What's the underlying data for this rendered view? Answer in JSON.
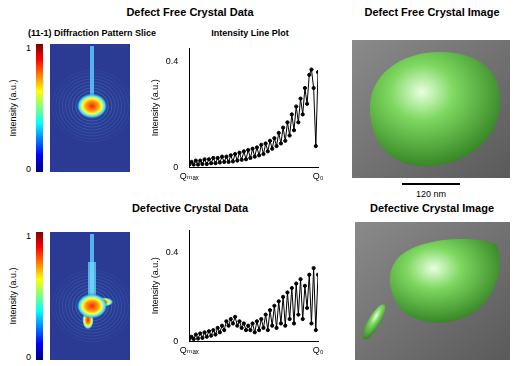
{
  "figure": {
    "rows": [
      {
        "data_title": "Defect Free Crystal Data",
        "image_title": "Defect Free Crystal Image",
        "pattern_title": "(11-1) Diffraction Pattern Slice",
        "plot_title": "Intensity Line Plot",
        "scale_bar": "120 nm"
      },
      {
        "data_title": "Defective Crystal Data",
        "image_title": "Defective Crystal Image"
      }
    ],
    "colorbar": {
      "label": "Intensity (a.u.)",
      "range": [
        0,
        1
      ],
      "ticks": [
        0,
        1
      ]
    }
  },
  "chart_data": [
    {
      "type": "line",
      "y_label": "Intensity (a.u.)",
      "color": "#000000",
      "marker": "circle",
      "line_style": "solid",
      "grid": false,
      "ylim": [
        0,
        0.45
      ],
      "yticks": [
        0,
        0.4
      ],
      "categories": [
        "Qₘₐₓ",
        null,
        null,
        null,
        null,
        null,
        null,
        null,
        null,
        null,
        null,
        null,
        null,
        null,
        null,
        null,
        null,
        null,
        null,
        null,
        null,
        null,
        null,
        null,
        null,
        null,
        null,
        null,
        null,
        null,
        null,
        null,
        null,
        null,
        null,
        null,
        null,
        null,
        null,
        null,
        null,
        null,
        null,
        null,
        null,
        null,
        null,
        null,
        null,
        null,
        null,
        null,
        null,
        null,
        null,
        null,
        null,
        null,
        null,
        "Q₀"
      ],
      "values": [
        0.01,
        0.02,
        0.01,
        0.025,
        0.01,
        0.025,
        0.012,
        0.03,
        0.012,
        0.03,
        0.015,
        0.035,
        0.015,
        0.035,
        0.018,
        0.04,
        0.02,
        0.04,
        0.02,
        0.045,
        0.022,
        0.05,
        0.025,
        0.055,
        0.028,
        0.06,
        0.03,
        0.065,
        0.035,
        0.07,
        0.04,
        0.075,
        0.045,
        0.085,
        0.05,
        0.09,
        0.06,
        0.1,
        0.07,
        0.11,
        0.08,
        0.13,
        0.09,
        0.15,
        0.1,
        0.17,
        0.12,
        0.2,
        0.14,
        0.23,
        0.17,
        0.26,
        0.2,
        0.3,
        0.24,
        0.35,
        0.37,
        0.3,
        0.08,
        0.36
      ]
    },
    {
      "type": "line",
      "y_label": "Intensity (a.u.)",
      "color": "#000000",
      "marker": "circle",
      "line_style": "solid",
      "grid": false,
      "ylim": [
        0,
        0.5
      ],
      "yticks": [
        0,
        0.4
      ],
      "categories": [
        "Qₘₐₓ",
        null,
        null,
        null,
        null,
        null,
        null,
        null,
        null,
        null,
        null,
        null,
        null,
        null,
        null,
        null,
        null,
        null,
        null,
        null,
        null,
        null,
        null,
        null,
        null,
        null,
        null,
        null,
        null,
        null,
        null,
        null,
        null,
        null,
        null,
        null,
        null,
        null,
        null,
        null,
        null,
        null,
        null,
        null,
        null,
        null,
        null,
        null,
        null,
        null,
        null,
        null,
        null,
        null,
        null,
        null,
        null,
        null,
        null,
        "Q₀"
      ],
      "values": [
        0.01,
        0.02,
        0.01,
        0.03,
        0.012,
        0.035,
        0.015,
        0.04,
        0.02,
        0.045,
        0.025,
        0.05,
        0.03,
        0.06,
        0.04,
        0.07,
        0.05,
        0.09,
        0.07,
        0.1,
        0.08,
        0.11,
        0.07,
        0.09,
        0.06,
        0.08,
        0.05,
        0.07,
        0.05,
        0.08,
        0.04,
        0.09,
        0.05,
        0.1,
        0.06,
        0.12,
        0.05,
        0.14,
        0.07,
        0.16,
        0.06,
        0.18,
        0.08,
        0.2,
        0.07,
        0.22,
        0.1,
        0.24,
        0.08,
        0.26,
        0.12,
        0.28,
        0.1,
        0.25,
        0.15,
        0.3,
        0.08,
        0.33,
        0.05,
        0.3
      ]
    }
  ]
}
